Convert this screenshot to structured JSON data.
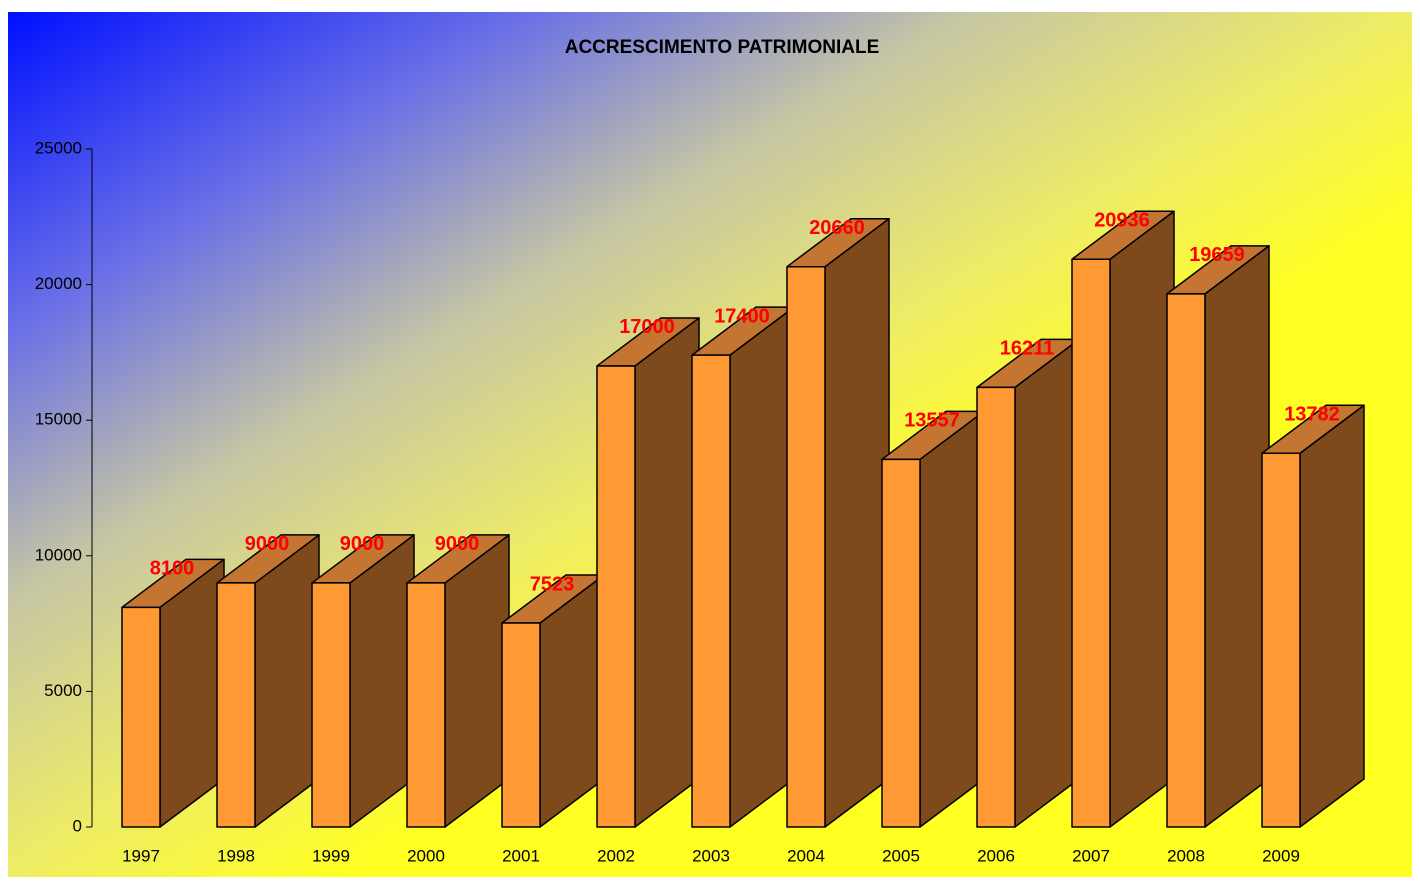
{
  "chart_data": {
    "type": "bar",
    "title": "ACCRESCIMENTO PATRIMONIALE",
    "categories": [
      "1997",
      "1998",
      "1999",
      "2000",
      "2001",
      "2002",
      "2003",
      "2004",
      "2005",
      "2006",
      "2007",
      "2008",
      "2009"
    ],
    "values": [
      8100,
      9000,
      9000,
      9000,
      7523,
      17000,
      17400,
      20660,
      13557,
      16211,
      20936,
      19659,
      13782
    ],
    "color": "#ff9933",
    "top_color": "#c47532",
    "side_color": "#7f4a1b",
    "value_label_color": "#ff0000",
    "ylim": [
      0,
      25000
    ],
    "yticks": [
      0,
      5000,
      10000,
      15000,
      20000,
      25000
    ],
    "grid": false
  }
}
